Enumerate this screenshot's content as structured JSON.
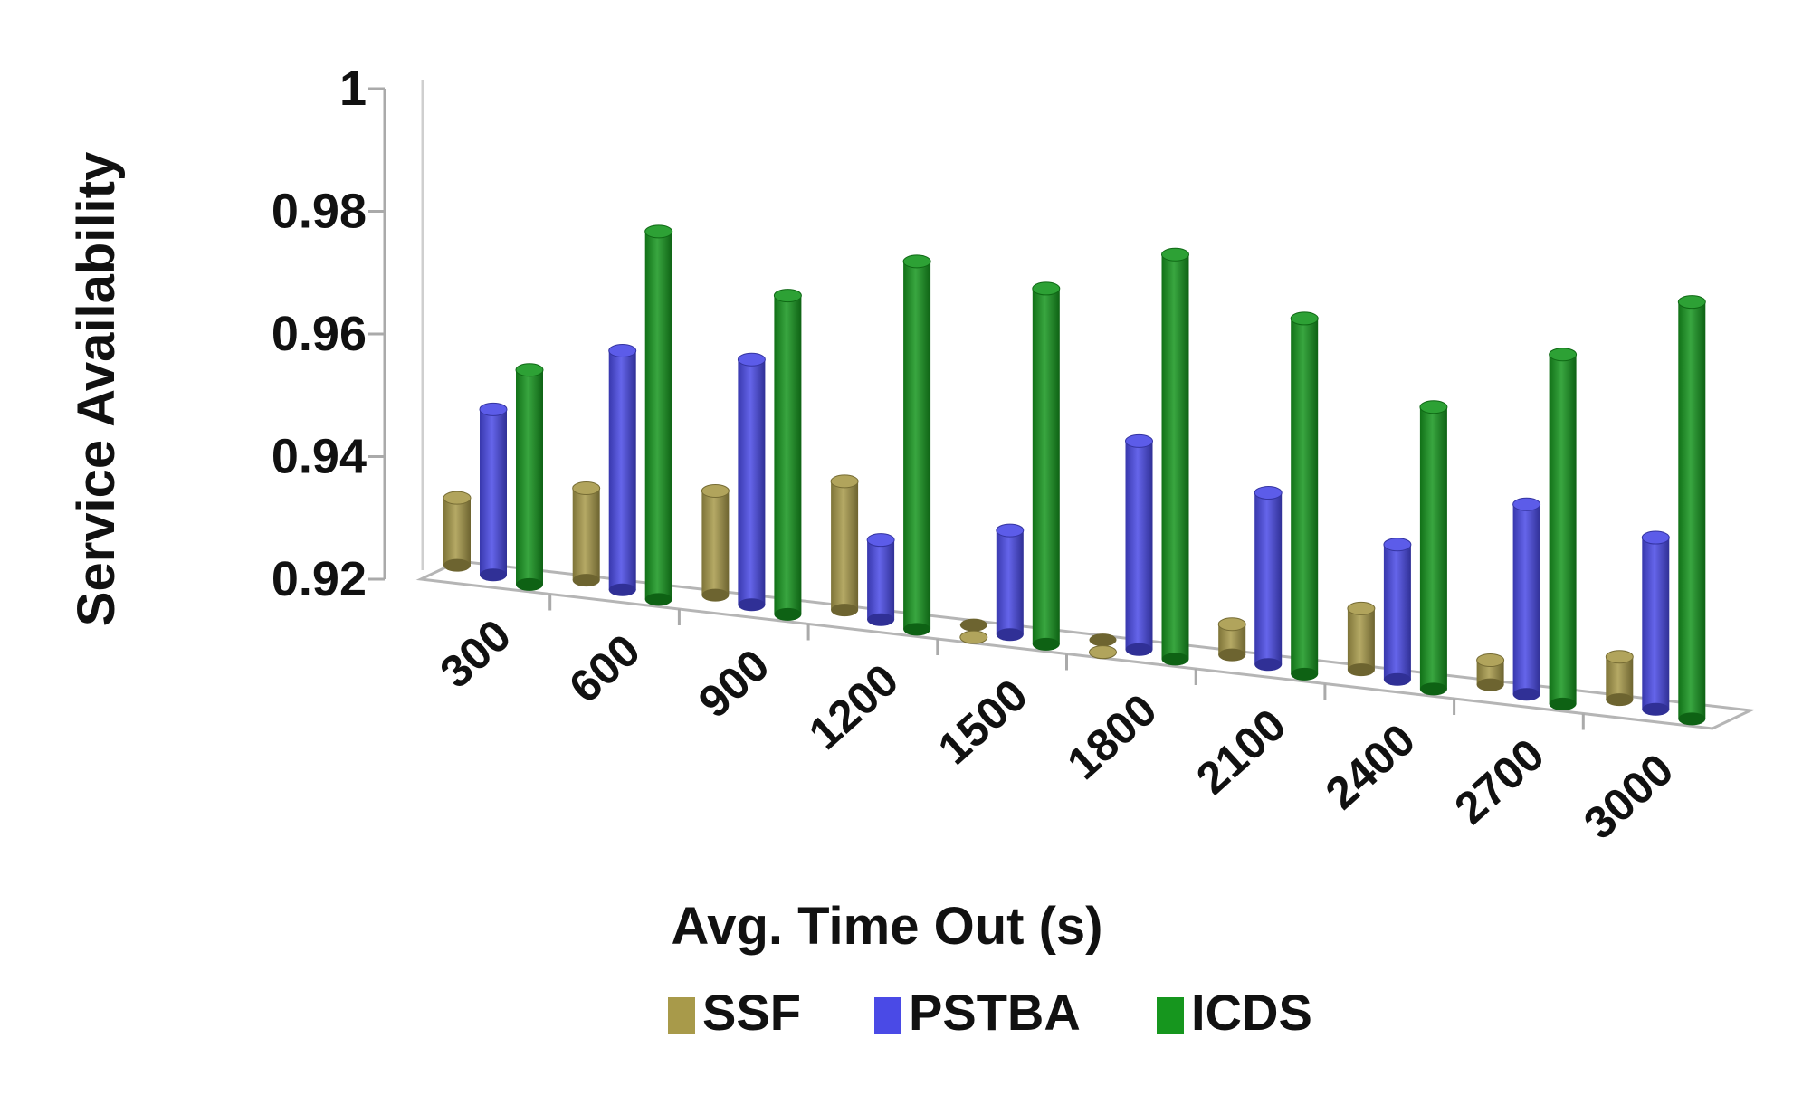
{
  "chart_data": {
    "type": "bar",
    "title": "",
    "xlabel": "Avg. Time Out (s)",
    "ylabel": "Service Availability",
    "categories": [
      "300",
      "600",
      "900",
      "1200",
      "1500",
      "1800",
      "2100",
      "2400",
      "2700",
      "3000"
    ],
    "series": [
      {
        "name": "SSF",
        "color": "#a89a4a",
        "values": [
          0.931,
          0.935,
          0.937,
          0.941,
          0.918,
          0.918,
          0.925,
          0.93,
          0.924,
          0.927
        ]
      },
      {
        "name": "PSTBA",
        "color": "#4a4ae6",
        "values": [
          0.947,
          0.959,
          0.96,
          0.933,
          0.937,
          0.954,
          0.948,
          0.942,
          0.951,
          0.948
        ]
      },
      {
        "name": "ICDS",
        "color": "#16961e",
        "values": [
          0.955,
          0.98,
          0.972,
          0.98,
          0.978,
          0.986,
          0.978,
          0.966,
          0.977,
          0.988
        ]
      }
    ],
    "ylim": [
      0.92,
      1.0
    ],
    "yticks": [
      "0.92",
      "0.94",
      "0.96",
      "0.98",
      "1"
    ],
    "legend": "bottom",
    "grid": false
  }
}
